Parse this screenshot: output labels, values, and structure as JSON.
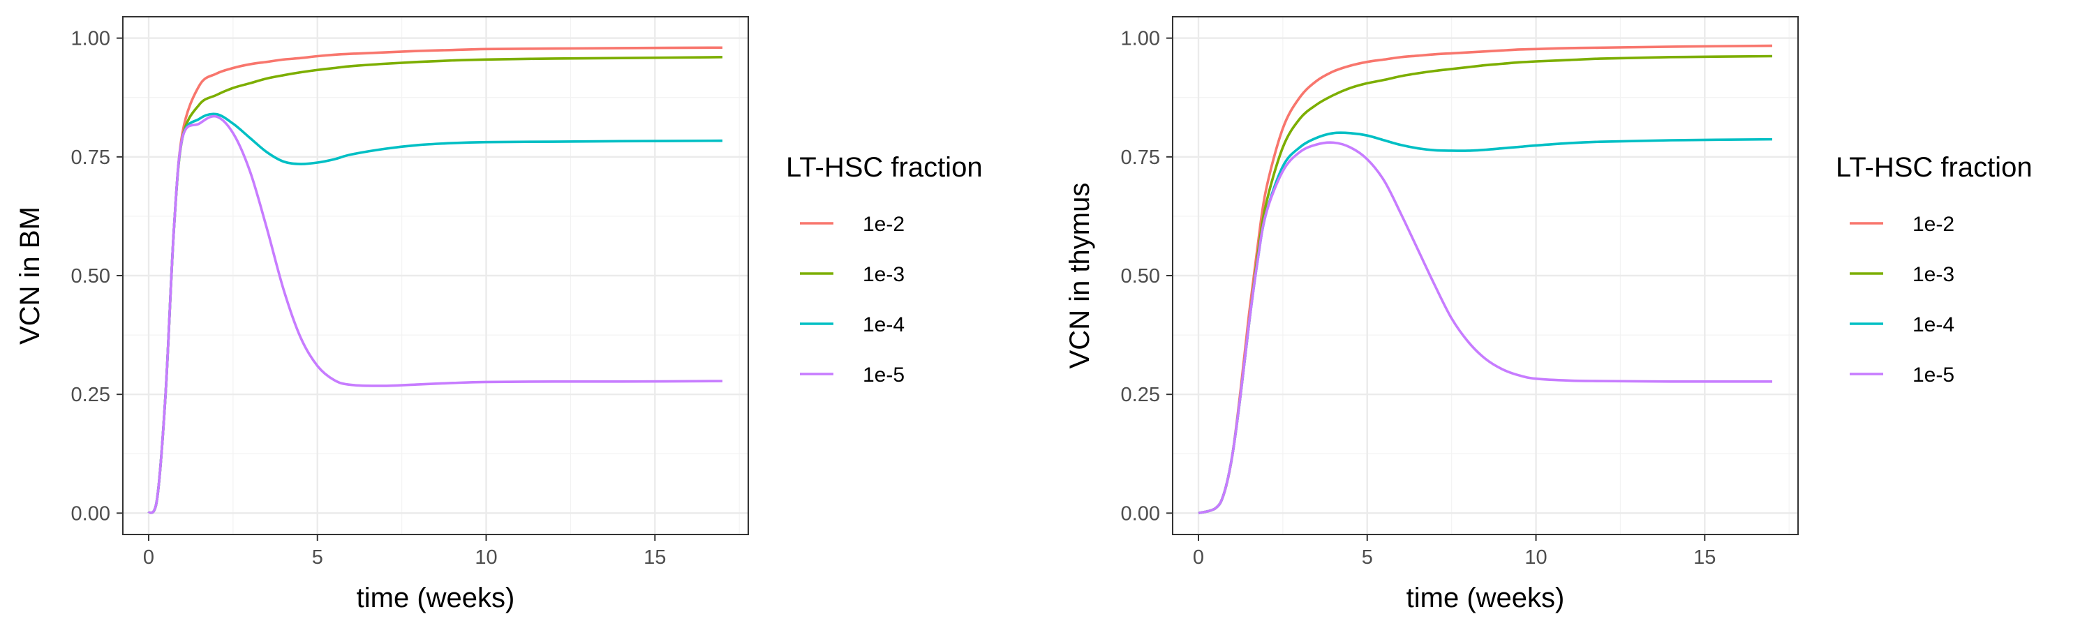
{
  "chart_data": [
    {
      "type": "line",
      "xlabel": "time (weeks)",
      "ylabel": "VCN in BM",
      "xlim": [
        0,
        17
      ],
      "ylim": [
        0,
        1
      ],
      "x_ticks": [
        0,
        5,
        10,
        15
      ],
      "x_tick_labels": [
        "0",
        "5",
        "10",
        "15"
      ],
      "y_ticks": [
        0,
        0.25,
        0.5,
        0.75,
        1
      ],
      "y_tick_labels": [
        "0.00",
        "0.25",
        "0.50",
        "0.75",
        "1.00"
      ],
      "grid": true,
      "legend": {
        "title": "LT-HSC fraction",
        "position": "right"
      },
      "x": [
        0,
        0.25,
        0.5,
        0.75,
        1,
        1.5,
        2,
        2.5,
        3,
        3.5,
        4,
        4.5,
        5,
        5.5,
        6,
        7,
        8,
        9,
        10,
        12,
        14,
        17
      ],
      "series": [
        {
          "name": "1e-2",
          "color": "#F8766D",
          "values": [
            0,
            0.03,
            0.25,
            0.6,
            0.8,
            0.9,
            0.925,
            0.937,
            0.945,
            0.95,
            0.955,
            0.958,
            0.962,
            0.965,
            0.967,
            0.97,
            0.973,
            0.975,
            0.977,
            0.978,
            0.979,
            0.98
          ]
        },
        {
          "name": "1e-3",
          "color": "#7CAE00",
          "values": [
            0,
            0.03,
            0.25,
            0.6,
            0.79,
            0.86,
            0.88,
            0.895,
            0.905,
            0.915,
            0.922,
            0.928,
            0.933,
            0.937,
            0.941,
            0.946,
            0.95,
            0.953,
            0.955,
            0.957,
            0.958,
            0.96
          ]
        },
        {
          "name": "1e-4",
          "color": "#00BFC4",
          "values": [
            0,
            0.03,
            0.25,
            0.6,
            0.79,
            0.83,
            0.84,
            0.82,
            0.79,
            0.76,
            0.74,
            0.735,
            0.738,
            0.745,
            0.755,
            0.767,
            0.775,
            0.779,
            0.781,
            0.782,
            0.783,
            0.784
          ]
        },
        {
          "name": "1e-5",
          "color": "#C77CFF",
          "values": [
            0,
            0.03,
            0.25,
            0.6,
            0.79,
            0.82,
            0.835,
            0.8,
            0.72,
            0.6,
            0.47,
            0.37,
            0.31,
            0.28,
            0.27,
            0.268,
            0.271,
            0.274,
            0.276,
            0.277,
            0.277,
            0.278
          ]
        }
      ]
    },
    {
      "type": "line",
      "xlabel": "time (weeks)",
      "ylabel": "VCN in thymus",
      "xlim": [
        0,
        17
      ],
      "ylim": [
        0,
        1
      ],
      "x_ticks": [
        0,
        5,
        10,
        15
      ],
      "x_tick_labels": [
        "0",
        "5",
        "10",
        "15"
      ],
      "y_ticks": [
        0,
        0.25,
        0.5,
        0.75,
        1
      ],
      "y_tick_labels": [
        "0.00",
        "0.25",
        "0.50",
        "0.75",
        "1.00"
      ],
      "grid": true,
      "legend": {
        "title": "LT-HSC fraction",
        "position": "right"
      },
      "x": [
        0,
        0.5,
        0.75,
        1,
        1.25,
        1.5,
        1.75,
        2,
        2.5,
        3,
        3.5,
        4,
        4.5,
        5,
        5.5,
        6,
        6.5,
        7,
        7.5,
        8,
        8.5,
        9,
        9.5,
        10,
        11,
        12,
        14,
        17
      ],
      "series": [
        {
          "name": "1e-2",
          "color": "#F8766D",
          "values": [
            0,
            0.01,
            0.04,
            0.12,
            0.26,
            0.42,
            0.56,
            0.68,
            0.81,
            0.875,
            0.91,
            0.93,
            0.942,
            0.95,
            0.955,
            0.96,
            0.963,
            0.966,
            0.968,
            0.97,
            0.972,
            0.974,
            0.976,
            0.977,
            0.979,
            0.98,
            0.982,
            0.984
          ]
        },
        {
          "name": "1e-3",
          "color": "#7CAE00",
          "values": [
            0,
            0.01,
            0.04,
            0.12,
            0.25,
            0.4,
            0.54,
            0.65,
            0.77,
            0.83,
            0.86,
            0.88,
            0.895,
            0.905,
            0.912,
            0.92,
            0.926,
            0.931,
            0.935,
            0.939,
            0.943,
            0.946,
            0.949,
            0.951,
            0.954,
            0.957,
            0.96,
            0.962
          ]
        },
        {
          "name": "1e-4",
          "color": "#00BFC4",
          "values": [
            0,
            0.01,
            0.04,
            0.12,
            0.25,
            0.4,
            0.53,
            0.63,
            0.73,
            0.77,
            0.79,
            0.8,
            0.8,
            0.795,
            0.785,
            0.775,
            0.768,
            0.764,
            0.763,
            0.763,
            0.765,
            0.768,
            0.771,
            0.774,
            0.779,
            0.782,
            0.785,
            0.787
          ]
        },
        {
          "name": "1e-5",
          "color": "#C77CFF",
          "values": [
            0,
            0.01,
            0.04,
            0.12,
            0.25,
            0.4,
            0.53,
            0.63,
            0.72,
            0.76,
            0.776,
            0.78,
            0.77,
            0.745,
            0.7,
            0.63,
            0.555,
            0.48,
            0.41,
            0.36,
            0.325,
            0.303,
            0.29,
            0.283,
            0.279,
            0.278,
            0.277,
            0.277
          ]
        }
      ]
    }
  ]
}
